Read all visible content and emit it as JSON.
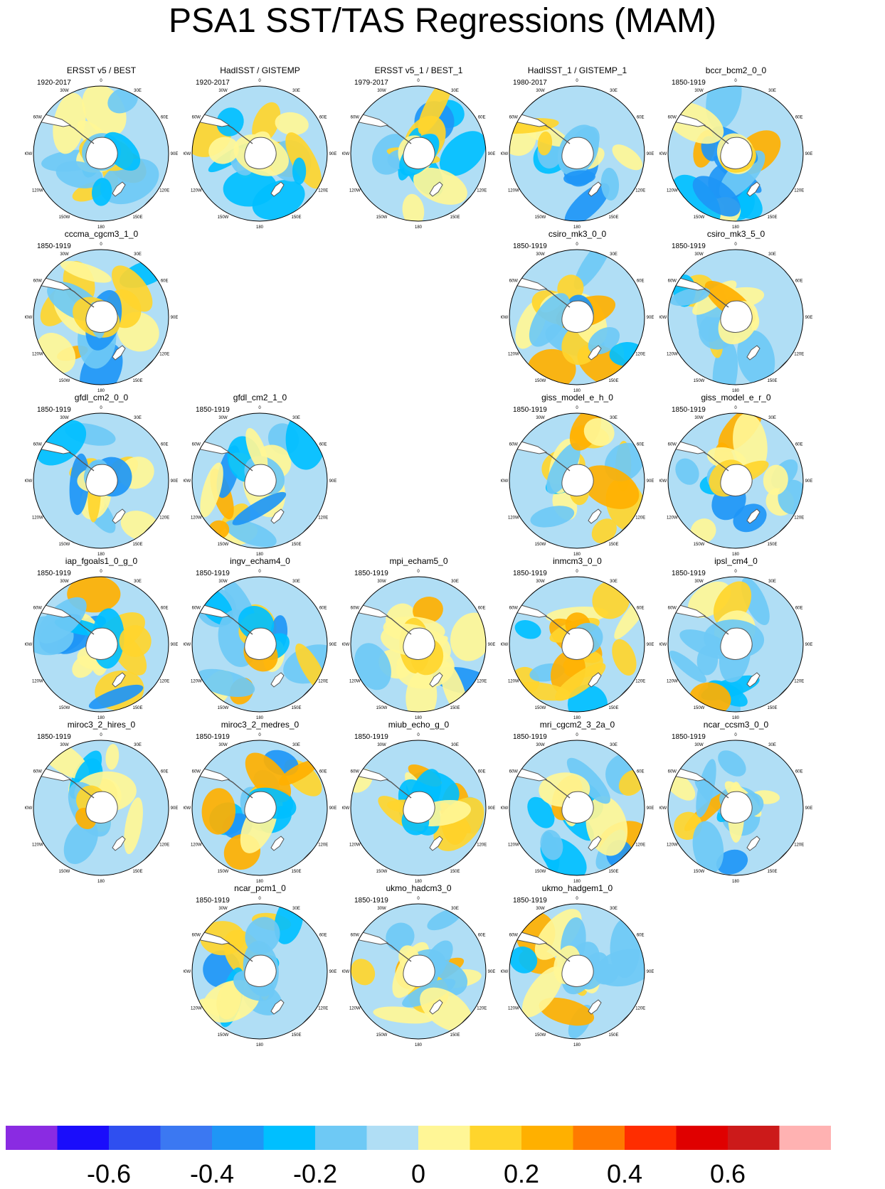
{
  "title": "PSA1 SST/TAS Regressions (MAM)",
  "chart_data": {
    "type": "polar-map-panels",
    "variable": "SST/TAS regression on PSA1",
    "season": "MAM",
    "projection": "south polar stereographic",
    "lon_ticks": [
      "0",
      "30E",
      "60E",
      "90E",
      "120E",
      "150E",
      "180",
      "150W",
      "120W",
      "90W",
      "60W",
      "30W"
    ],
    "panels": [
      {
        "name": "ERSST v5 / BEST",
        "period": "1920-2017",
        "row": 0,
        "col": 0
      },
      {
        "name": "HadISST / GISTEMP",
        "period": "1920-2017",
        "row": 0,
        "col": 1
      },
      {
        "name": "ERSST v5_1 / BEST_1",
        "period": "1979-2017",
        "row": 0,
        "col": 2
      },
      {
        "name": "HadISST_1 / GISTEMP_1",
        "period": "1980-2017",
        "row": 0,
        "col": 3
      },
      {
        "name": "bccr_bcm2_0_0",
        "period": "1850-1919",
        "row": 0,
        "col": 4
      },
      {
        "name": "cccma_cgcm3_1_0",
        "period": "1850-1919",
        "row": 1,
        "col": 0
      },
      {
        "name": "csiro_mk3_0_0",
        "period": "1850-1919",
        "row": 1,
        "col": 3
      },
      {
        "name": "csiro_mk3_5_0",
        "period": "1850-1919",
        "row": 1,
        "col": 4
      },
      {
        "name": "gfdl_cm2_0_0",
        "period": "1850-1919",
        "row": 2,
        "col": 0
      },
      {
        "name": "gfdl_cm2_1_0",
        "period": "1850-1919",
        "row": 2,
        "col": 1
      },
      {
        "name": "giss_model_e_h_0",
        "period": "1850-1919",
        "row": 2,
        "col": 3
      },
      {
        "name": "giss_model_e_r_0",
        "period": "1850-1919",
        "row": 2,
        "col": 4
      },
      {
        "name": "iap_fgoals1_0_g_0",
        "period": "1850-1919",
        "row": 3,
        "col": 0
      },
      {
        "name": "ingv_echam4_0",
        "period": "1850-1919",
        "row": 3,
        "col": 1
      },
      {
        "name": "mpi_echam5_0",
        "period": "1850-1919",
        "row": 3,
        "col": 2
      },
      {
        "name": "inmcm3_0_0",
        "period": "1850-1919",
        "row": 3,
        "col": 3
      },
      {
        "name": "ipsl_cm4_0",
        "period": "1850-1919",
        "row": 3,
        "col": 4
      },
      {
        "name": "miroc3_2_hires_0",
        "period": "1850-1919",
        "row": 4,
        "col": 0
      },
      {
        "name": "miroc3_2_medres_0",
        "period": "1850-1919",
        "row": 4,
        "col": 1
      },
      {
        "name": "miub_echo_g_0",
        "period": "1850-1919",
        "row": 4,
        "col": 2
      },
      {
        "name": "mri_cgcm2_3_2a_0",
        "period": "1850-1919",
        "row": 4,
        "col": 3
      },
      {
        "name": "ncar_ccsm3_0_0",
        "period": "1850-1919",
        "row": 4,
        "col": 4
      },
      {
        "name": "ncar_pcm1_0",
        "period": "1850-1919",
        "row": 5,
        "col": 1
      },
      {
        "name": "ukmo_hadcm3_0",
        "period": "1850-1919",
        "row": 5,
        "col": 2
      },
      {
        "name": "ukmo_hadgem1_0",
        "period": "1850-1919",
        "row": 5,
        "col": 3
      }
    ],
    "colorbar": {
      "levels": [
        -0.7,
        -0.6,
        -0.5,
        -0.4,
        -0.3,
        -0.2,
        -0.1,
        0,
        0.1,
        0.2,
        0.3,
        0.4,
        0.5,
        0.6,
        0.7
      ],
      "colors": [
        "#8a2be2",
        "#1a0dfb",
        "#2f4ff0",
        "#3b78f2",
        "#1e96f6",
        "#00bfff",
        "#6ec9f5",
        "#b0def5",
        "#fff696",
        "#ffd52c",
        "#ffb000",
        "#ff7a00",
        "#ff2d00",
        "#e00000",
        "#cc1a1a",
        "#ffb2b2"
      ],
      "labels": [
        "-0.6",
        "-0.4",
        "-0.2",
        "0",
        "0.2",
        "0.4",
        "0.6"
      ],
      "label_values": [
        -0.6,
        -0.4,
        -0.2,
        0,
        0.2,
        0.4,
        0.6
      ]
    }
  }
}
